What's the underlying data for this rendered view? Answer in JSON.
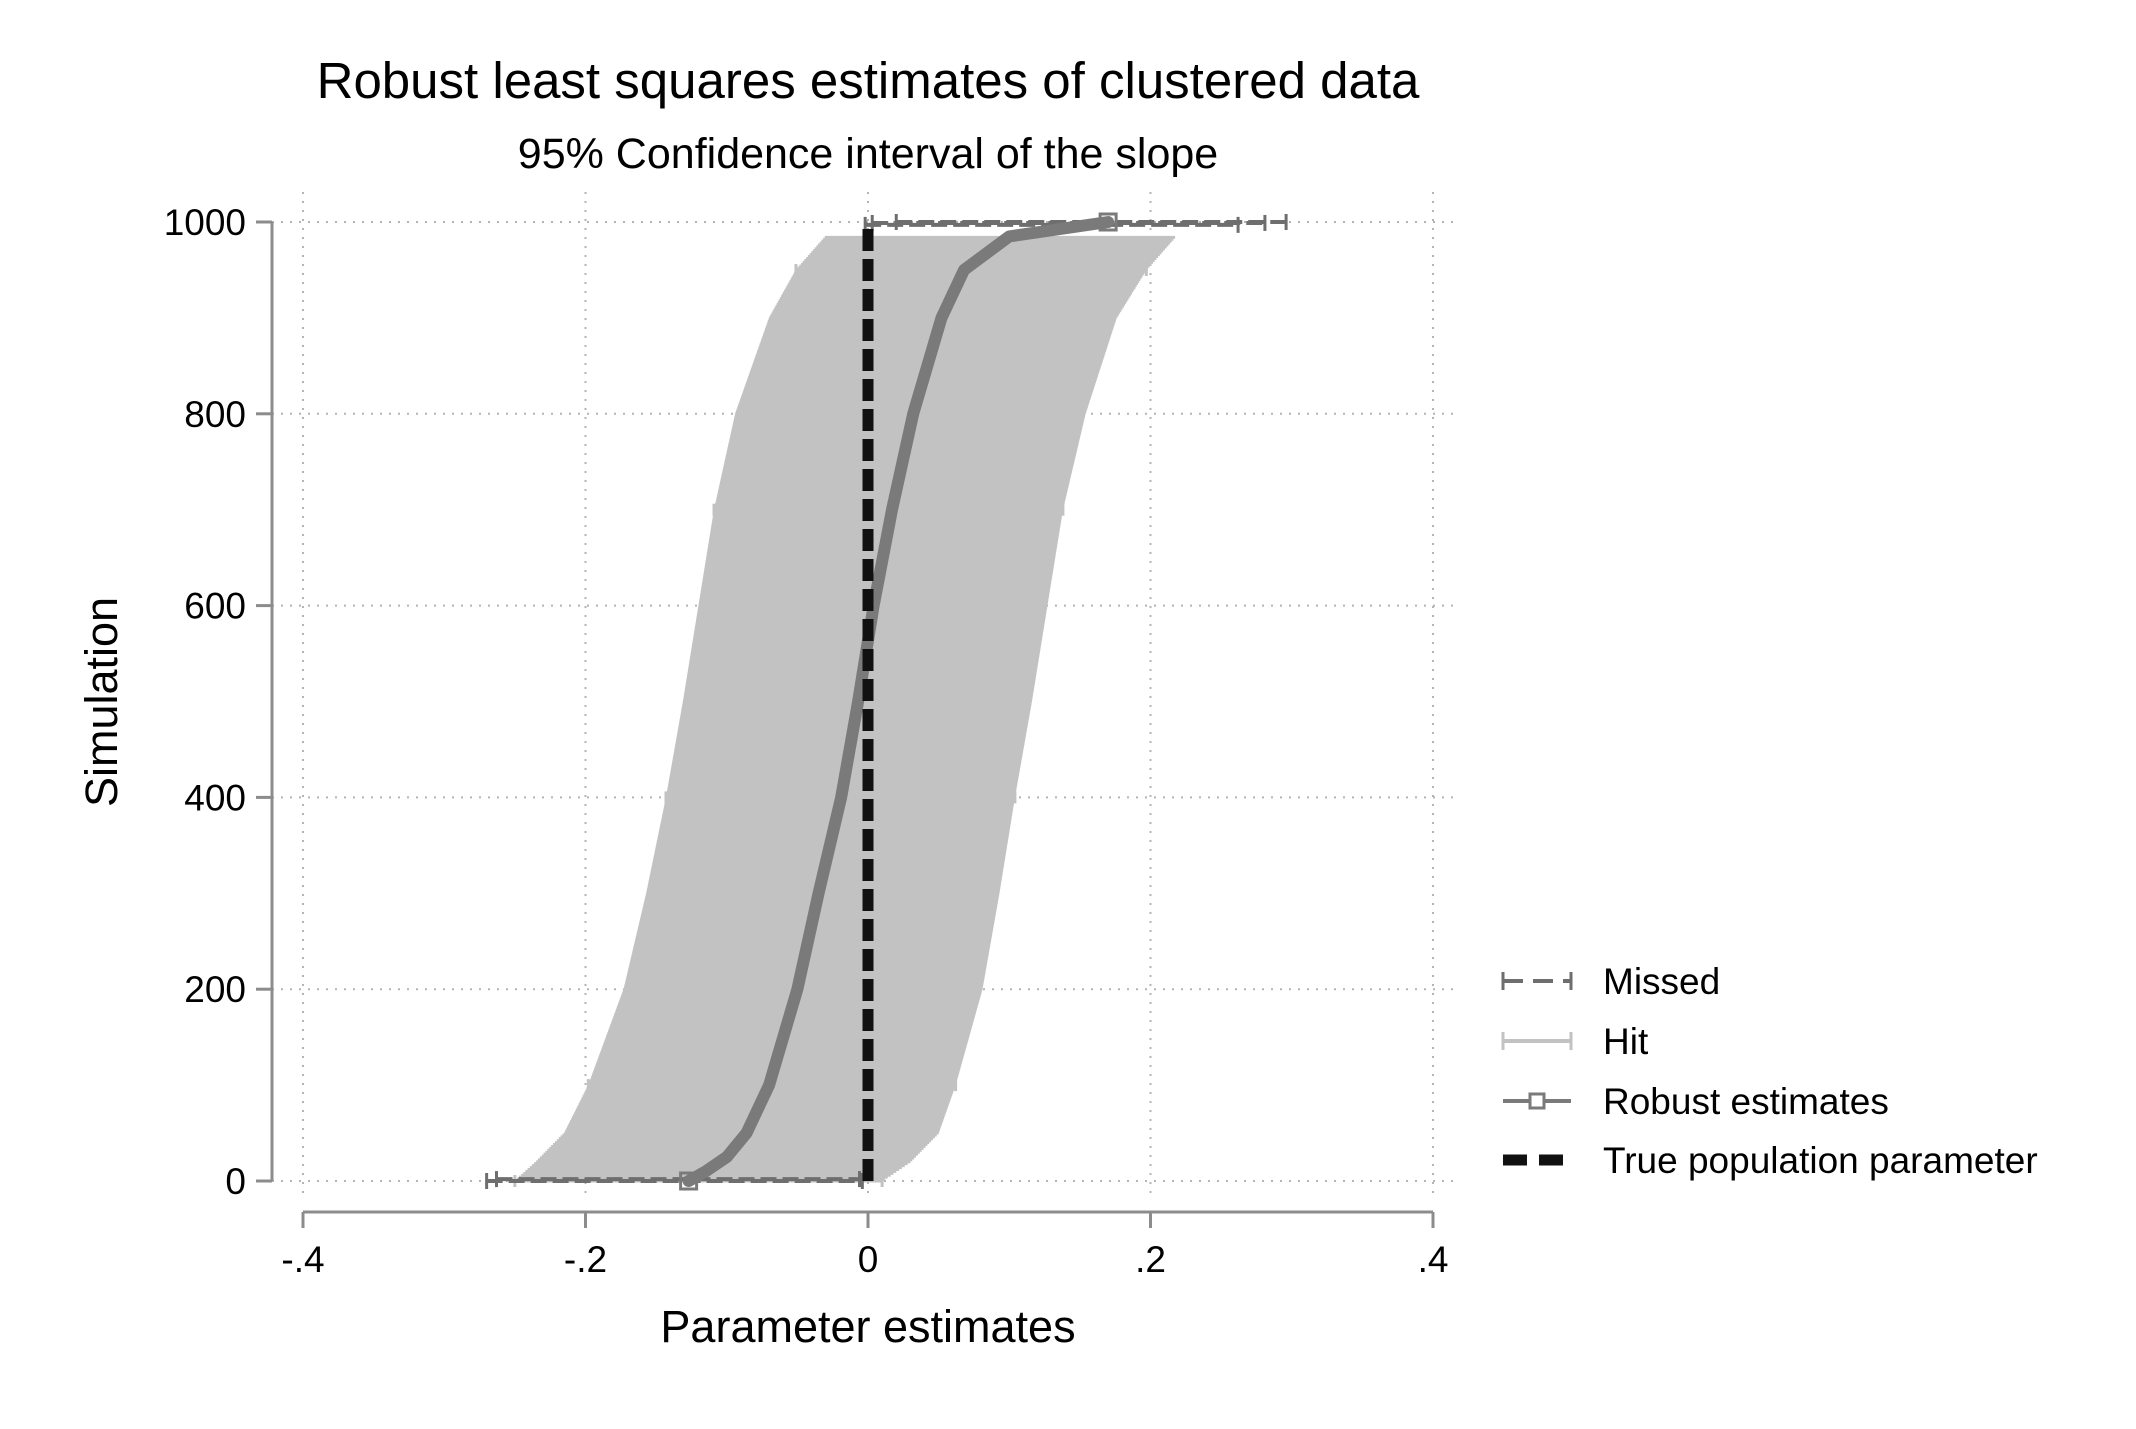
{
  "chart_data": {
    "type": "line",
    "title": "Robust least squares estimates of clustered data",
    "subtitle": "95% Confidence interval of the slope",
    "xlabel": "Parameter estimates",
    "ylabel": "Simulation",
    "xlim": [
      -0.4,
      0.4
    ],
    "ylim": [
      0,
      1000
    ],
    "x_ticks": [
      -0.4,
      -0.2,
      0,
      0.2,
      0.4
    ],
    "x_tick_labels": [
      "-.4",
      "-.2",
      "0",
      ".2",
      ".4"
    ],
    "y_ticks": [
      0,
      200,
      400,
      600,
      800,
      1000
    ],
    "y_tick_labels": [
      "0",
      "200",
      "400",
      "600",
      "800",
      "1000"
    ],
    "grid": true,
    "legend_position": "right",
    "colors": {
      "hit": "#c2c2c2",
      "missed": "#6e6e6e",
      "estimate": "#7a7a7a",
      "true_param": "#111111",
      "axis": "#8c8c8c",
      "grid": "#b4b4b4"
    },
    "series": [
      {
        "name": "Hit",
        "kind": "ci-band",
        "y": [
          0,
          20,
          50,
          100,
          200,
          300,
          400,
          500,
          600,
          700,
          800,
          900,
          950,
          985
        ],
        "lower": [
          -0.25,
          -0.235,
          -0.215,
          -0.198,
          -0.173,
          -0.157,
          -0.143,
          -0.131,
          -0.12,
          -0.109,
          -0.094,
          -0.07,
          -0.051,
          -0.03
        ],
        "upper": [
          0.01,
          0.03,
          0.05,
          0.062,
          0.081,
          0.093,
          0.104,
          0.116,
          0.127,
          0.138,
          0.154,
          0.176,
          0.197,
          0.218
        ]
      },
      {
        "name": "Missed",
        "kind": "ci-segments",
        "intervals": [
          {
            "y": 0,
            "lower": -0.27,
            "upper": -0.004
          },
          {
            "y": 2,
            "lower": -0.263,
            "upper": -0.006
          },
          {
            "y": 997,
            "lower": -0.002,
            "upper": 0.262
          },
          {
            "y": 999,
            "lower": 0.003,
            "upper": 0.281
          },
          {
            "y": 1000,
            "lower": 0.02,
            "upper": 0.296
          }
        ]
      },
      {
        "name": "Robust estimates",
        "kind": "line",
        "y": [
          0,
          10,
          25,
          50,
          100,
          200,
          300,
          400,
          500,
          600,
          700,
          800,
          900,
          950,
          985,
          1000
        ],
        "x": [
          -0.127,
          -0.115,
          -0.1,
          -0.086,
          -0.07,
          -0.05,
          -0.035,
          -0.019,
          -0.007,
          0.004,
          0.017,
          0.032,
          0.052,
          0.068,
          0.1,
          0.17
        ]
      },
      {
        "name": "True population parameter",
        "kind": "vline",
        "x": 0
      }
    ]
  }
}
